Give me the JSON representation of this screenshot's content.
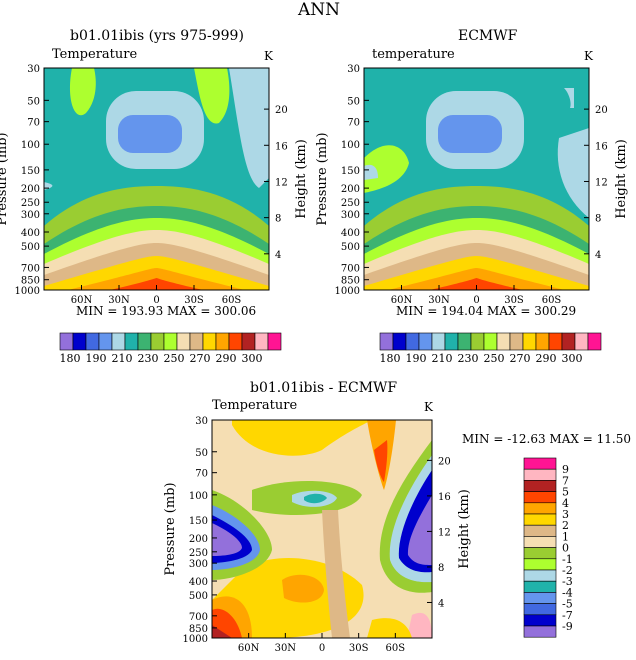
{
  "page_title": "ANN",
  "panels": [
    {
      "title": "b01.01ibis (yrs 975-999)",
      "variable": "Temperature",
      "units": "K",
      "left_axis_label": "Pressure (mb)",
      "right_axis_label": "Height (km)",
      "minmax": "MIN = 193.93   MAX = 300.06"
    },
    {
      "title": "ECMWF",
      "variable": "temperature",
      "units": "K",
      "left_axis_label": "Pressure (mb)",
      "right_axis_label": "Height (km)",
      "minmax": "MIN = 194.04   MAX = 300.29"
    },
    {
      "title": "b01.01ibis - ECMWF",
      "variable": "Temperature",
      "units": "K",
      "left_axis_label": "Pressure (mb)",
      "right_axis_label": "Height (km)",
      "minmax": "MIN = -12.63   MAX =  11.50"
    }
  ],
  "chart_data": [
    {
      "type": "heatmap",
      "title": "b01.01ibis (yrs 975-999)",
      "pressure_ticks": [
        "30",
        "50",
        "70",
        "100",
        "150",
        "200",
        "250",
        "300",
        "400",
        "500",
        "700",
        "850",
        "1000"
      ],
      "height_ticks": [
        "20",
        "16",
        "12",
        "8",
        "4"
      ],
      "lat_ticks": [
        "60N",
        "30N",
        "0",
        "30S",
        "60S"
      ],
      "contour_levels": [
        180,
        185,
        190,
        200,
        210,
        220,
        230,
        240,
        250,
        260,
        270,
        280,
        290,
        295,
        300
      ],
      "colorbar_labels": [
        "180",
        "190",
        "210",
        "230",
        "250",
        "270",
        "290",
        "300"
      ],
      "min": 193.93,
      "max": 300.06
    },
    {
      "type": "heatmap",
      "title": "ECMWF",
      "pressure_ticks": [
        "30",
        "50",
        "70",
        "100",
        "150",
        "200",
        "250",
        "300",
        "400",
        "500",
        "700",
        "850",
        "1000"
      ],
      "height_ticks": [
        "20",
        "16",
        "12",
        "8",
        "4"
      ],
      "lat_ticks": [
        "60N",
        "30N",
        "0",
        "30S",
        "60S"
      ],
      "contour_levels": [
        180,
        185,
        190,
        200,
        210,
        220,
        230,
        240,
        250,
        260,
        270,
        280,
        290,
        295,
        300
      ],
      "colorbar_labels": [
        "180",
        "190",
        "210",
        "230",
        "250",
        "270",
        "290",
        "300"
      ],
      "min": 194.04,
      "max": 300.29
    },
    {
      "type": "heatmap",
      "title": "b01.01ibis - ECMWF",
      "pressure_ticks": [
        "30",
        "50",
        "70",
        "100",
        "150",
        "200",
        "250",
        "300",
        "400",
        "500",
        "700",
        "850",
        "1000"
      ],
      "height_ticks": [
        "20",
        "16",
        "12",
        "8",
        "4"
      ],
      "lat_ticks": [
        "60N",
        "30N",
        "0",
        "30S",
        "60S"
      ],
      "colorbar_labels": [
        "9",
        "7",
        "5",
        "4",
        "3",
        "2",
        "1",
        "0",
        "-1",
        "-2",
        "-3",
        "-4",
        "-5",
        "-7",
        "-9"
      ],
      "min": -12.63,
      "max": 11.5
    }
  ],
  "colors": {
    "temp_scale": [
      "#9370db",
      "#0000cd",
      "#4169e1",
      "#6495ed",
      "#add8e6",
      "#20b2aa",
      "#3cb371",
      "#9acd32",
      "#adff2f",
      "#f5deb3",
      "#deb887",
      "#ffd700",
      "#ffa500",
      "#ff4500",
      "#b22222",
      "#ffb6c1",
      "#ff1493"
    ],
    "diff_scale": [
      "#ff1493",
      "#ffb6c1",
      "#b22222",
      "#ff4500",
      "#ffa500",
      "#ffd700",
      "#deb887",
      "#f5deb3",
      "#9acd32",
      "#adff2f",
      "#add8e6",
      "#20b2aa",
      "#6495ed",
      "#4169e1",
      "#0000cd",
      "#9370db"
    ]
  }
}
